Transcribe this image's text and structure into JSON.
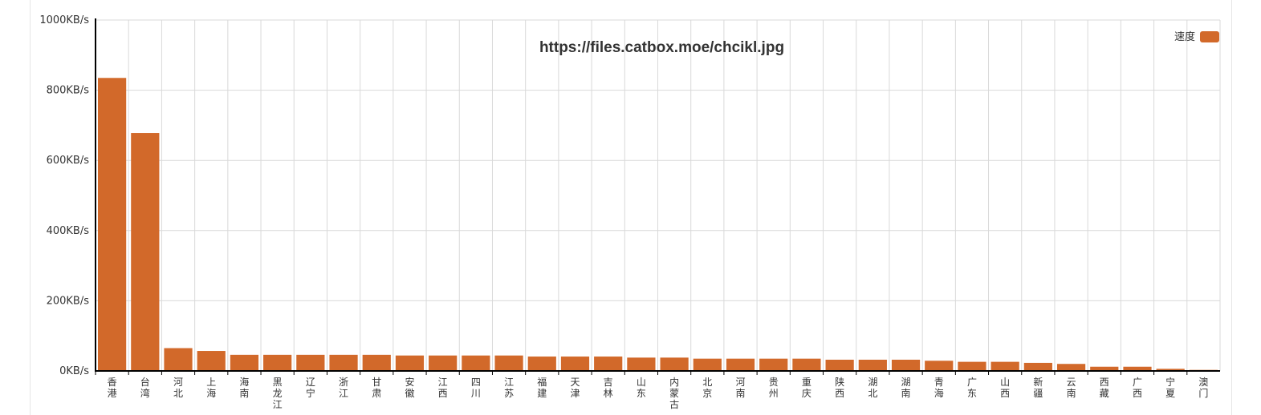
{
  "chart_data": {
    "type": "bar",
    "title": "https://files.catbox.moe/chcikl.jpg",
    "categories": [
      "香港",
      "台湾",
      "河北",
      "上海",
      "海南",
      "黑龙江",
      "辽宁",
      "浙江",
      "甘肃",
      "安徽",
      "江西",
      "四川",
      "江苏",
      "福建",
      "天津",
      "吉林",
      "山东",
      "内蒙古",
      "北京",
      "河南",
      "贵州",
      "重庆",
      "陕西",
      "湖北",
      "湖南",
      "青海",
      "广东",
      "山西",
      "新疆",
      "云南",
      "西藏",
      "广西",
      "宁夏",
      "澳门"
    ],
    "series": [
      {
        "name": "速度",
        "color": "#d2692a",
        "values": [
          835,
          678,
          65,
          57,
          46,
          46,
          46,
          46,
          46,
          44,
          44,
          44,
          44,
          41,
          41,
          41,
          38,
          38,
          35,
          35,
          35,
          35,
          32,
          32,
          32,
          29,
          26,
          26,
          23,
          20,
          12,
          12,
          6,
          3
        ]
      }
    ],
    "ylim": [
      0,
      1000
    ],
    "yticks": [
      "0KB/s",
      "200KB/s",
      "400KB/s",
      "600KB/s",
      "800KB/s",
      "1000KB/s"
    ],
    "ytick_values": [
      0,
      200,
      400,
      600,
      800,
      1000
    ],
    "grid": true,
    "legend_position": "top-right"
  }
}
